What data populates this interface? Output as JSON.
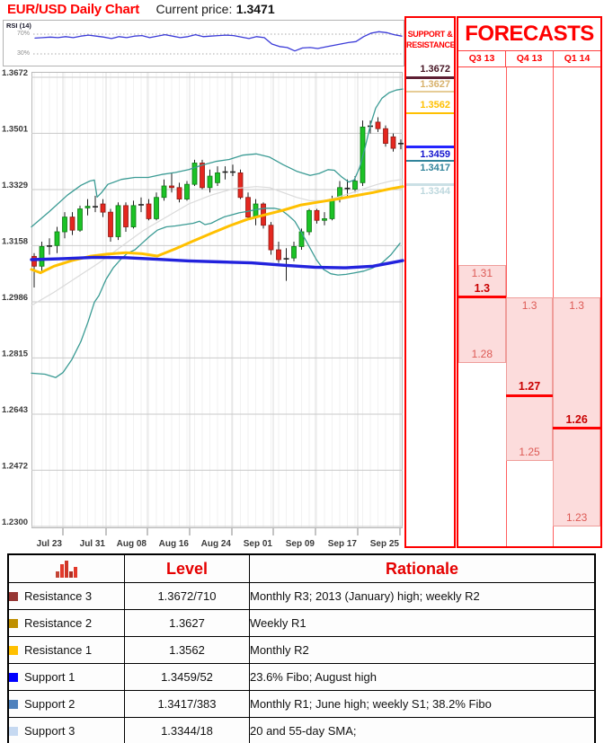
{
  "header": {
    "title": "EUR/USD Daily Chart",
    "current_price_label": "Current price:",
    "current_price": "1.3471"
  },
  "rsi": {
    "label": "RSI (14)",
    "upper_label": "70%",
    "lower_label": "30%",
    "upper": 70,
    "lower": 30,
    "line_color": "#3b3bd8",
    "values": [
      62,
      63,
      64,
      63,
      65,
      63,
      66,
      68,
      66,
      64,
      61,
      65,
      63,
      66,
      67,
      63,
      66,
      69,
      66,
      63,
      65,
      69,
      65,
      66,
      67,
      68,
      67,
      64,
      61,
      65,
      63,
      50,
      45,
      43,
      36,
      42,
      43,
      41,
      44,
      47,
      50,
      53,
      55,
      65,
      72,
      75,
      73,
      69,
      66
    ]
  },
  "chart_data": {
    "type": "candlestick",
    "title": "EUR/USD Daily Chart",
    "pair": "EUR/USD",
    "timeframe": "Daily",
    "y_axis": {
      "min": 1.23,
      "max": 1.3672,
      "tick_labels": [
        "1.3672",
        "1.3501",
        "1.3329",
        "1.3158",
        "1.2986",
        "1.2815",
        "1.2643",
        "1.2472",
        "1.2300"
      ]
    },
    "x_axis": {
      "tick_labels": [
        "Jul 23",
        "Jul 31",
        "Aug 08",
        "Aug 16",
        "Aug 24",
        "Sep 01",
        "Sep 09",
        "Sep 17",
        "Sep 25"
      ],
      "tick_x": [
        70,
        118,
        164,
        211,
        258,
        304,
        351,
        398,
        445
      ]
    },
    "colors": {
      "up": "#1cc226",
      "up_border": "#0e7a14",
      "down": "#e4271f",
      "down_border": "#8f1b15",
      "wick": "#1c1c1c",
      "grid": "#c9c9c9"
    },
    "candles": [
      [
        1.3125,
        1.3135,
        1.303,
        1.3095
      ],
      [
        1.3095,
        1.317,
        1.308,
        1.3155
      ],
      [
        1.3155,
        1.318,
        1.313,
        1.3158
      ],
      [
        1.3158,
        1.3215,
        1.3135,
        1.32
      ],
      [
        1.32,
        1.326,
        1.318,
        1.3245
      ],
      [
        1.3245,
        1.326,
        1.319,
        1.3205
      ],
      [
        1.3205,
        1.328,
        1.32,
        1.327
      ],
      [
        1.3273,
        1.33,
        1.325,
        1.3278
      ],
      [
        1.3278,
        1.331,
        1.326,
        1.3275
      ],
      [
        1.3285,
        1.33,
        1.3245,
        1.326
      ],
      [
        1.326,
        1.327,
        1.317,
        1.3185
      ],
      [
        1.3185,
        1.329,
        1.3175,
        1.328
      ],
      [
        1.328,
        1.329,
        1.32,
        1.3215
      ],
      [
        1.3215,
        1.3295,
        1.321,
        1.328
      ],
      [
        1.328,
        1.3305,
        1.326,
        1.3285
      ],
      [
        1.3285,
        1.33,
        1.3235,
        1.324
      ],
      [
        1.324,
        1.332,
        1.3235,
        1.3305
      ],
      [
        1.3305,
        1.336,
        1.3295,
        1.334
      ],
      [
        1.334,
        1.338,
        1.332,
        1.3335
      ],
      [
        1.3335,
        1.335,
        1.329,
        1.33
      ],
      [
        1.33,
        1.3355,
        1.3295,
        1.3345
      ],
      [
        1.3345,
        1.342,
        1.334,
        1.341
      ],
      [
        1.341,
        1.342,
        1.333,
        1.3335
      ],
      [
        1.3335,
        1.339,
        1.332,
        1.337
      ],
      [
        1.335,
        1.34,
        1.334,
        1.338
      ],
      [
        1.338,
        1.34,
        1.336,
        1.3385
      ],
      [
        1.3385,
        1.3405,
        1.337,
        1.338
      ],
      [
        1.338,
        1.339,
        1.33,
        1.3305
      ],
      [
        1.3305,
        1.332,
        1.324,
        1.3245
      ],
      [
        1.3245,
        1.33,
        1.322,
        1.3285
      ],
      [
        1.3285,
        1.329,
        1.321,
        1.322
      ],
      [
        1.322,
        1.323,
        1.313,
        1.3145
      ],
      [
        1.3145,
        1.317,
        1.3105,
        1.3115
      ],
      [
        1.3115,
        1.315,
        1.305,
        1.312
      ],
      [
        1.312,
        1.317,
        1.311,
        1.3155
      ],
      [
        1.3155,
        1.321,
        1.3145,
        1.32
      ],
      [
        1.32,
        1.327,
        1.319,
        1.3265
      ],
      [
        1.3265,
        1.327,
        1.3225,
        1.3235
      ],
      [
        1.3235,
        1.326,
        1.322,
        1.324
      ],
      [
        1.324,
        1.331,
        1.3235,
        1.33
      ],
      [
        1.33,
        1.3355,
        1.329,
        1.3335
      ],
      [
        1.3335,
        1.336,
        1.331,
        1.333
      ],
      [
        1.333,
        1.337,
        1.332,
        1.3355
      ],
      [
        1.335,
        1.354,
        1.334,
        1.352
      ],
      [
        1.352,
        1.354,
        1.35,
        1.3525
      ],
      [
        1.3535,
        1.355,
        1.3505,
        1.3515
      ],
      [
        1.3515,
        1.3525,
        1.346,
        1.347
      ],
      [
        1.349,
        1.35,
        1.3445,
        1.3455
      ],
      [
        1.3468,
        1.3482,
        1.3452,
        1.3471
      ]
    ],
    "overlays": [
      {
        "name": "gray-ma",
        "color": "#dadada",
        "width": 1.2,
        "points": [
          [
            35,
            1.2975
          ],
          [
            60,
            1.3015
          ],
          [
            85,
            1.306
          ],
          [
            110,
            1.3105
          ],
          [
            135,
            1.3155
          ],
          [
            160,
            1.3205
          ],
          [
            185,
            1.3245
          ],
          [
            210,
            1.3285
          ],
          [
            235,
            1.3312
          ],
          [
            260,
            1.3332
          ],
          [
            285,
            1.3338
          ],
          [
            300,
            1.3335
          ],
          [
            315,
            1.332
          ],
          [
            330,
            1.3305
          ],
          [
            345,
            1.3295
          ],
          [
            360,
            1.3295
          ],
          [
            375,
            1.3305
          ],
          [
            390,
            1.3318
          ],
          [
            405,
            1.3332
          ],
          [
            420,
            1.3345
          ],
          [
            435,
            1.3355
          ],
          [
            448,
            1.336
          ]
        ]
      },
      {
        "name": "bollinger-upper",
        "color": "#3a9b94",
        "width": 1.3,
        "points": [
          [
            35,
            1.3215
          ],
          [
            55,
            1.3262
          ],
          [
            75,
            1.3312
          ],
          [
            90,
            1.3342
          ],
          [
            100,
            1.3355
          ],
          [
            105,
            1.3358
          ],
          [
            108,
            1.3306
          ],
          [
            113,
            1.332
          ],
          [
            120,
            1.3345
          ],
          [
            135,
            1.336
          ],
          [
            150,
            1.3366
          ],
          [
            165,
            1.3366
          ],
          [
            180,
            1.3375
          ],
          [
            195,
            1.3381
          ],
          [
            210,
            1.339
          ],
          [
            225,
            1.3404
          ],
          [
            240,
            1.3415
          ],
          [
            255,
            1.3421
          ],
          [
            270,
            1.3434
          ],
          [
            285,
            1.3438
          ],
          [
            300,
            1.3428
          ],
          [
            315,
            1.3405
          ],
          [
            330,
            1.3385
          ],
          [
            345,
            1.3372
          ],
          [
            355,
            1.3378
          ],
          [
            365,
            1.339
          ],
          [
            372,
            1.3388
          ],
          [
            380,
            1.3368
          ],
          [
            388,
            1.3352
          ],
          [
            394,
            1.3358
          ],
          [
            400,
            1.3395
          ],
          [
            406,
            1.3455
          ],
          [
            412,
            1.3525
          ],
          [
            418,
            1.3578
          ],
          [
            425,
            1.3608
          ],
          [
            433,
            1.3625
          ],
          [
            441,
            1.3633
          ],
          [
            448,
            1.3636
          ]
        ]
      },
      {
        "name": "bollinger-lower",
        "color": "#3a9b94",
        "width": 1.3,
        "points": [
          [
            35,
            1.2768
          ],
          [
            50,
            1.2765
          ],
          [
            62,
            1.2755
          ],
          [
            70,
            1.277
          ],
          [
            80,
            1.281
          ],
          [
            90,
            1.2865
          ],
          [
            98,
            1.2925
          ],
          [
            105,
            1.2985
          ],
          [
            110,
            1.3005
          ],
          [
            118,
            1.3055
          ],
          [
            126,
            1.309
          ],
          [
            134,
            1.3115
          ],
          [
            142,
            1.3135
          ],
          [
            150,
            1.3145
          ],
          [
            158,
            1.3165
          ],
          [
            166,
            1.3185
          ],
          [
            175,
            1.3205
          ],
          [
            185,
            1.3215
          ],
          [
            195,
            1.3218
          ],
          [
            205,
            1.3222
          ],
          [
            215,
            1.3226
          ],
          [
            222,
            1.3232
          ],
          [
            228,
            1.3222
          ],
          [
            235,
            1.3226
          ],
          [
            242,
            1.3236
          ],
          [
            250,
            1.3246
          ],
          [
            258,
            1.3252
          ],
          [
            266,
            1.3258
          ],
          [
            275,
            1.3262
          ],
          [
            285,
            1.3268
          ],
          [
            295,
            1.3272
          ],
          [
            305,
            1.3272
          ],
          [
            312,
            1.3268
          ],
          [
            320,
            1.3252
          ],
          [
            328,
            1.3232
          ],
          [
            336,
            1.3195
          ],
          [
            344,
            1.3155
          ],
          [
            352,
            1.3115
          ],
          [
            360,
            1.3085
          ],
          [
            368,
            1.3072
          ],
          [
            376,
            1.3068
          ],
          [
            385,
            1.307
          ],
          [
            395,
            1.3075
          ],
          [
            405,
            1.308
          ],
          [
            415,
            1.309
          ],
          [
            425,
            1.3105
          ],
          [
            435,
            1.313
          ],
          [
            445,
            1.3165
          ]
        ]
      },
      {
        "name": "sma-20",
        "color": "#ffc000",
        "width": 3,
        "points": [
          [
            35,
            1.3085
          ],
          [
            45,
            1.3075
          ],
          [
            60,
            1.3095
          ],
          [
            80,
            1.3112
          ],
          [
            100,
            1.3125
          ],
          [
            120,
            1.3132
          ],
          [
            140,
            1.3136
          ],
          [
            158,
            1.3133
          ],
          [
            175,
            1.3126
          ],
          [
            195,
            1.3148
          ],
          [
            215,
            1.3172
          ],
          [
            235,
            1.3195
          ],
          [
            255,
            1.3218
          ],
          [
            275,
            1.3238
          ],
          [
            295,
            1.3252
          ],
          [
            315,
            1.3266
          ],
          [
            335,
            1.3282
          ],
          [
            355,
            1.3291
          ],
          [
            375,
            1.33
          ],
          [
            395,
            1.331
          ],
          [
            415,
            1.332
          ],
          [
            432,
            1.333
          ],
          [
            448,
            1.3338
          ]
        ]
      },
      {
        "name": "sma-55",
        "color": "#2222dd",
        "width": 3.4,
        "points": [
          [
            35,
            1.3115
          ],
          [
            70,
            1.3118
          ],
          [
            105,
            1.3122
          ],
          [
            140,
            1.3121
          ],
          [
            175,
            1.3116
          ],
          [
            210,
            1.3111
          ],
          [
            245,
            1.3108
          ],
          [
            280,
            1.3105
          ],
          [
            315,
            1.3098
          ],
          [
            350,
            1.3092
          ],
          [
            385,
            1.309
          ],
          [
            415,
            1.3095
          ],
          [
            448,
            1.3112
          ]
        ]
      }
    ]
  },
  "support_resistance": {
    "header_line1": "SUPPORT &",
    "header_line2": "RESISTANCE",
    "levels": [
      {
        "label": "1.3672",
        "value": 1.3672,
        "text_color": "#451322",
        "line_color": "#5e1f33",
        "line_width": 3,
        "label_pos": "above"
      },
      {
        "label": "1.3627",
        "value": 1.3627,
        "text_color": "#d8b26d",
        "line_color": "#e6cc96",
        "line_width": 2,
        "label_pos": "above"
      },
      {
        "label": "1.3562",
        "value": 1.3562,
        "text_color": "#ffc000",
        "line_color": "#ffc000",
        "line_width": 2.5,
        "label_pos": "above"
      },
      {
        "label": "1.3459",
        "value": 1.3459,
        "text_color": "#1515cf",
        "line_color": "#2424ff",
        "line_width": 3.5,
        "label_pos": "below"
      },
      {
        "label": "1.3417",
        "value": 1.3417,
        "text_color": "#31849b",
        "line_color": "#31849b",
        "line_width": 2.5,
        "label_pos": "below"
      },
      {
        "label": "1.3344",
        "value": 1.3344,
        "text_color": "#bed8de",
        "line_color": "#cbe0e5",
        "line_width": 2.5,
        "label_pos": "below"
      }
    ]
  },
  "forecasts": {
    "title": "FORECASTS",
    "accent_color": "#fe0000",
    "fill_color": "#fcdcdc",
    "columns": [
      {
        "label": "Q3 13",
        "range_top": 1.31,
        "range_bottom": 1.28,
        "target": 1.3,
        "top_label": "1.31",
        "target_label": "1.3",
        "bottom_label": "1.28"
      },
      {
        "label": "Q4 13",
        "range_top": 1.3,
        "range_bottom": 1.25,
        "target": 1.27,
        "top_label": "1.3",
        "target_label": "1.27",
        "bottom_label": "1.25"
      },
      {
        "label": "Q1 14",
        "range_top": 1.3,
        "range_bottom": 1.23,
        "target": 1.26,
        "top_label": "1.3",
        "target_label": "1.26",
        "bottom_label": "1.23"
      }
    ]
  },
  "table": {
    "icon": "bar-chart-icon",
    "col_level": "Level",
    "col_rationale": "Rationale",
    "rows": [
      {
        "name": "Resistance 3",
        "chip_color": "#963634",
        "level": "1.3672/710",
        "rationale": "Monthly R3; 2013 (January) high; weekly R2"
      },
      {
        "name": "Resistance 2",
        "chip_color": "#bf8f00",
        "level": "1.3627",
        "rationale": "Weekly R1"
      },
      {
        "name": "Resistance 1",
        "chip_color": "#ffc000",
        "level": "1.3562",
        "rationale": "Monthly R2"
      },
      {
        "name": "Support 1",
        "chip_color": "#0000ff",
        "level": "1.3459/52",
        "rationale": "23.6% Fibo; August high"
      },
      {
        "name": "Support 2",
        "chip_color": "#4f81bd",
        "level": "1.3417/383",
        "rationale": "Monthly R1; June high; weekly S1; 38.2% Fibo"
      },
      {
        "name": "Support 3",
        "chip_color": "#c6d9f1",
        "level": "1.3344/18",
        "rationale": "20 and 55-day SMA;"
      }
    ]
  }
}
